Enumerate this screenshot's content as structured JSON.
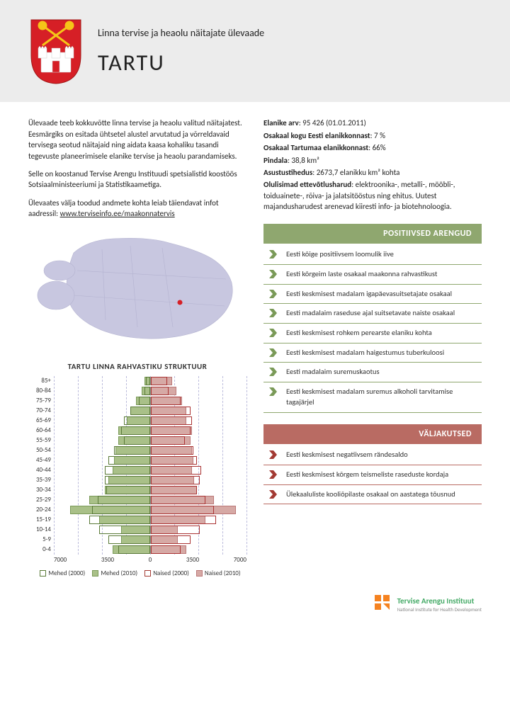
{
  "header": {
    "subtitle": "Linna tervise ja heaolu näitajate ülevaade",
    "city": "TARTU",
    "coat_colors": {
      "shield": "#d61f26",
      "keys": "#f5c518",
      "castle": "#ffffff"
    }
  },
  "intro": {
    "p1": "Ülevaade teeb kokkuvõtte linna tervise ja heaolu valitud näitajatest. Eesmärgiks on esitada ühtsetel alustel arvutatud ja võrreldavaid tervisega seotud näitajaid ning aidata kaasa kohaliku tasandi tegevuste planeerimisele elanike tervise ja heaolu parandamiseks.",
    "p2": "Selle on koostanud Tervise Arengu Instituudi spetsialistid koostöös Sotsiaalministeeriumi ja Statistikaametiga.",
    "p3_prefix": "Ülevaates välja toodud andmete kohta leiab täiendavat infot aadressil: ",
    "p3_link": "www.terviseinfo.ee/maakonnatervis"
  },
  "map": {
    "bg_color": "#c8c7e0",
    "border_color": "#bfbfda",
    "highlight_color": "#d61f26"
  },
  "pyramid": {
    "title": "TARTU LINNA RAHVASTIKU STRUKTUUR",
    "axis_max": 7000,
    "axis_ticks": [
      "7000",
      "3500",
      "0",
      "3500",
      "7000"
    ],
    "legend": {
      "m2000": "Mehed (2000)",
      "m2010": "Mehed (2010)",
      "f2000": "Naised (2000)",
      "f2010": "Naised (2010)"
    },
    "colors": {
      "male_fill": "#a9c088",
      "male_border": "#5a7a38",
      "female_fill": "#d6a9a5",
      "female_border": "#a33a33",
      "grid": "#bcbcdc",
      "axis": "#999999"
    },
    "rows": [
      {
        "label": "85+",
        "m2010": 400,
        "m2000": 300,
        "f2010": 1600,
        "f2000": 1200
      },
      {
        "label": "80-84",
        "m2010": 600,
        "m2000": 400,
        "f2010": 1900,
        "f2000": 1300
      },
      {
        "label": "75-79",
        "m2010": 1000,
        "m2000": 800,
        "f2010": 2300,
        "f2000": 2200
      },
      {
        "label": "70-74",
        "m2010": 1400,
        "m2000": 1400,
        "f2010": 2600,
        "f2000": 2900
      },
      {
        "label": "65-69",
        "m2010": 1700,
        "m2000": 1900,
        "f2010": 2600,
        "f2000": 3000
      },
      {
        "label": "60-64",
        "m2010": 2300,
        "m2000": 2100,
        "f2010": 3000,
        "f2000": 2900
      },
      {
        "label": "55-59",
        "m2010": 2300,
        "m2000": 1900,
        "f2010": 2900,
        "f2000": 2500
      },
      {
        "label": "50-54",
        "m2010": 2500,
        "m2000": 2600,
        "f2010": 3000,
        "f2000": 3100
      },
      {
        "label": "45-49",
        "m2010": 2600,
        "m2000": 3000,
        "f2010": 3100,
        "f2000": 3400
      },
      {
        "label": "40-44",
        "m2010": 2700,
        "m2000": 3300,
        "f2010": 3000,
        "f2000": 3700
      },
      {
        "label": "35-39",
        "m2010": 3000,
        "m2000": 3300,
        "f2010": 3200,
        "f2000": 3600
      },
      {
        "label": "30-34",
        "m2010": 3300,
        "m2000": 3200,
        "f2010": 3400,
        "f2000": 3400
      },
      {
        "label": "25-29",
        "m2010": 4400,
        "m2000": 3800,
        "f2010": 4600,
        "f2000": 4000
      },
      {
        "label": "20-24",
        "m2010": 5800,
        "m2000": 4200,
        "f2010": 6200,
        "f2000": 4600
      },
      {
        "label": "15-19",
        "m2010": 3700,
        "m2000": 4400,
        "f2010": 4000,
        "f2000": 4800
      },
      {
        "label": "10-14",
        "m2010": 2100,
        "m2000": 3700,
        "f2010": 2000,
        "f2000": 3600
      },
      {
        "label": "5-9",
        "m2010": 2100,
        "m2000": 3000,
        "f2010": 2000,
        "f2000": 2900
      },
      {
        "label": "0-4",
        "m2010": 2700,
        "m2000": 2300,
        "f2010": 2600,
        "f2000": 2200
      }
    ]
  },
  "stats": {
    "lines": [
      {
        "label": "Elanike arv",
        "value": "95 426 (01.01.2011)"
      },
      {
        "label": "Osakaal kogu Eesti elanikkonnast",
        "value": "7 %"
      },
      {
        "label": "Osakaal Tartumaa elanikkonnast",
        "value": "66%"
      },
      {
        "label": "Pindala",
        "value": "38,8 km²"
      },
      {
        "label": "Asustustihedus",
        "value": "2673,7 elanikku km² kohta"
      }
    ],
    "industries_label": "Olulisimad ettevõtlusharud",
    "industries_text": ": elektroonika-, metalli-, mööbli-, toiduainete-, rõiva- ja jalatsitööstus ning ehitus. Uutest majandusharudest arenevad kiiresti info- ja biotehnoloogia."
  },
  "positives": {
    "heading": "POSITIIVSED ARENGUD",
    "chevron_color": "#7a9a58",
    "items": [
      "Eesti kõige positiivsem loomulik iive",
      "Eesti kõrgeim laste osakaal maakonna rahvastikust",
      "Eesti keskmisest madalam igapäevasuitsetajate osakaal",
      "Eesti madalaim raseduse ajal suitsetavate naiste osakaal",
      "Eesti keskmisest rohkem perearste elaniku kohta",
      "Eesti keskmisest madalam haigestumus tuberkuloosi",
      "Eesti madalaim suremuskaotus",
      "Eesti keskmisest madalam suremus alkoholi tarvitamise tagajärjel"
    ]
  },
  "challenges": {
    "heading": "VÄLJAKUTSED",
    "chevron_color": "#a33a33",
    "items": [
      "Eesti keskmisest negatiivsem rändesaldo",
      "Eesti keskmisest kõrgem teismeliste raseduste kordaja",
      "Ülekaaluliste kooliõpilaste osakaal on aastatega tõusnud"
    ]
  },
  "footer": {
    "org_name": "Tervise Arengu Instituut",
    "org_sub": "National Institute for Health Development",
    "logo_color": "#f58220"
  }
}
